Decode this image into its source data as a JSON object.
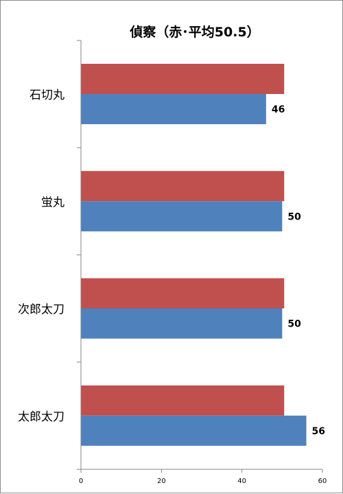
{
  "chart_data": {
    "type": "bar",
    "orientation": "horizontal",
    "title": "偵察（赤･平均50.5）",
    "categories": [
      "石切丸",
      "蛍丸",
      "次郎太刀",
      "太郎太刀"
    ],
    "series": [
      {
        "color": "#c0504d",
        "values": [
          50.5,
          50.5,
          50.5,
          50.5
        ],
        "show_labels": false
      },
      {
        "color": "#4f81bd",
        "values": [
          46,
          50,
          50,
          56
        ],
        "show_labels": true
      }
    ],
    "xlim": [
      0,
      60
    ],
    "xticks": [
      0,
      20,
      40,
      60
    ],
    "xtick_labels": [
      "0",
      "20",
      "40",
      "60"
    ],
    "grid": false,
    "legend": "none"
  }
}
